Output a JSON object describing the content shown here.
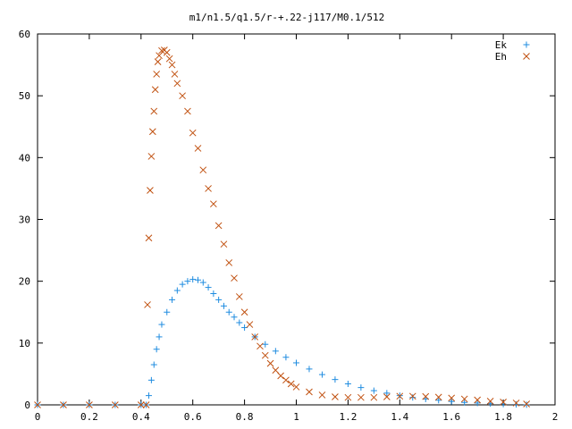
{
  "chart_data": {
    "type": "scatter",
    "title": "m1/n1.5/q1.5/r-+.22-j117/M0.1/512",
    "xlabel": "",
    "ylabel": "",
    "xlim": [
      0,
      2
    ],
    "ylim": [
      0,
      60
    ],
    "xticks": [
      "0",
      "0.2",
      "0.4",
      "0.6",
      "0.8",
      "1",
      "1.2",
      "1.4",
      "1.6",
      "1.8",
      "2"
    ],
    "yticks": [
      "0",
      "10",
      "20",
      "30",
      "40",
      "50",
      "60"
    ],
    "grid": false,
    "legend_position": "top-right",
    "series": [
      {
        "name": "Ek",
        "marker": "plus",
        "color": "#1f8ce0",
        "points": [
          [
            0.0,
            0
          ],
          [
            0.1,
            0
          ],
          [
            0.2,
            0
          ],
          [
            0.3,
            0
          ],
          [
            0.4,
            0
          ],
          [
            0.42,
            0
          ],
          [
            0.43,
            1.5
          ],
          [
            0.44,
            4
          ],
          [
            0.45,
            6.5
          ],
          [
            0.46,
            9
          ],
          [
            0.47,
            11
          ],
          [
            0.48,
            13
          ],
          [
            0.5,
            15
          ],
          [
            0.52,
            17
          ],
          [
            0.54,
            18.5
          ],
          [
            0.56,
            19.5
          ],
          [
            0.58,
            20
          ],
          [
            0.6,
            20.3
          ],
          [
            0.62,
            20.2
          ],
          [
            0.64,
            19.8
          ],
          [
            0.66,
            19
          ],
          [
            0.68,
            18
          ],
          [
            0.7,
            17
          ],
          [
            0.72,
            16
          ],
          [
            0.74,
            15
          ],
          [
            0.76,
            14.2
          ],
          [
            0.78,
            13.3
          ],
          [
            0.8,
            12.5
          ],
          [
            0.84,
            11
          ],
          [
            0.88,
            9.8
          ],
          [
            0.92,
            8.7
          ],
          [
            0.96,
            7.7
          ],
          [
            1.0,
            6.8
          ],
          [
            1.05,
            5.8
          ],
          [
            1.1,
            4.9
          ],
          [
            1.15,
            4.1
          ],
          [
            1.2,
            3.4
          ],
          [
            1.25,
            2.8
          ],
          [
            1.3,
            2.3
          ],
          [
            1.35,
            1.9
          ],
          [
            1.4,
            1.5
          ],
          [
            1.45,
            1.2
          ],
          [
            1.5,
            0.95
          ],
          [
            1.55,
            0.75
          ],
          [
            1.6,
            0.55
          ],
          [
            1.65,
            0.4
          ],
          [
            1.7,
            0.3
          ],
          [
            1.75,
            0.2
          ],
          [
            1.8,
            0.12
          ],
          [
            1.85,
            0.06
          ],
          [
            1.89,
            0.02
          ]
        ]
      },
      {
        "name": "Eh",
        "marker": "cross",
        "color": "#c0500f",
        "points": [
          [
            0.0,
            0
          ],
          [
            0.1,
            0
          ],
          [
            0.2,
            0
          ],
          [
            0.3,
            0
          ],
          [
            0.4,
            0
          ],
          [
            0.42,
            0
          ],
          [
            0.425,
            16.2
          ],
          [
            0.43,
            27
          ],
          [
            0.435,
            34.7
          ],
          [
            0.44,
            40.2
          ],
          [
            0.445,
            44.2
          ],
          [
            0.45,
            47.5
          ],
          [
            0.455,
            51
          ],
          [
            0.46,
            53.5
          ],
          [
            0.465,
            55.5
          ],
          [
            0.47,
            56.5
          ],
          [
            0.48,
            57.3
          ],
          [
            0.49,
            57.4
          ],
          [
            0.5,
            57
          ],
          [
            0.51,
            56
          ],
          [
            0.52,
            55
          ],
          [
            0.53,
            53.5
          ],
          [
            0.54,
            52
          ],
          [
            0.56,
            50
          ],
          [
            0.58,
            47.5
          ],
          [
            0.6,
            44
          ],
          [
            0.62,
            41.5
          ],
          [
            0.64,
            38
          ],
          [
            0.66,
            35
          ],
          [
            0.68,
            32.5
          ],
          [
            0.7,
            29
          ],
          [
            0.72,
            26
          ],
          [
            0.74,
            23
          ],
          [
            0.76,
            20.5
          ],
          [
            0.78,
            17.5
          ],
          [
            0.8,
            15
          ],
          [
            0.82,
            13
          ],
          [
            0.84,
            11
          ],
          [
            0.86,
            9.5
          ],
          [
            0.88,
            8
          ],
          [
            0.9,
            6.7
          ],
          [
            0.92,
            5.6
          ],
          [
            0.94,
            4.7
          ],
          [
            0.96,
            4
          ],
          [
            0.98,
            3.4
          ],
          [
            1.0,
            2.9
          ],
          [
            1.05,
            2.1
          ],
          [
            1.1,
            1.6
          ],
          [
            1.15,
            1.3
          ],
          [
            1.2,
            1.2
          ],
          [
            1.25,
            1.2
          ],
          [
            1.3,
            1.2
          ],
          [
            1.35,
            1.3
          ],
          [
            1.4,
            1.4
          ],
          [
            1.45,
            1.4
          ],
          [
            1.5,
            1.35
          ],
          [
            1.55,
            1.25
          ],
          [
            1.6,
            1.1
          ],
          [
            1.65,
            0.95
          ],
          [
            1.7,
            0.8
          ],
          [
            1.75,
            0.6
          ],
          [
            1.8,
            0.45
          ],
          [
            1.85,
            0.3
          ],
          [
            1.89,
            0.15
          ]
        ]
      }
    ]
  }
}
